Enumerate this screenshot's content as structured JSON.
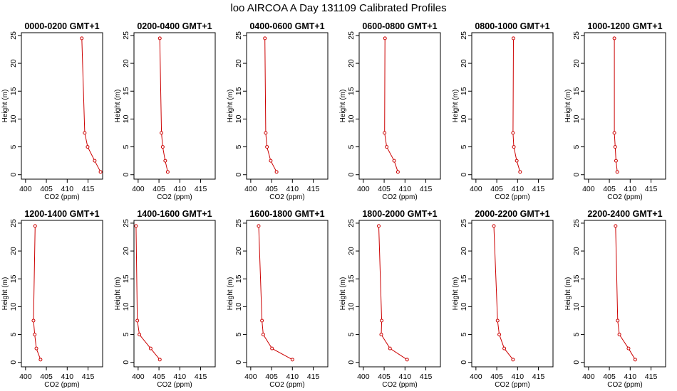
{
  "title": "loo AIRCOA A  Day 131109  Calibrated Profiles",
  "colors": {
    "profile_line": "#cc0000",
    "profile_point": "#cc0000"
  },
  "chart_data": {
    "type": "line",
    "xlabel": "CO2 (ppm)",
    "ylabel": "Height (m)",
    "xlim": [
      399,
      418.5
    ],
    "ylim": [
      -0.8,
      25.5
    ],
    "xticks": [
      400,
      405,
      410,
      415
    ],
    "yticks": [
      0,
      5,
      10,
      15,
      20,
      25
    ],
    "heights": [
      0.5,
      2.5,
      5,
      7.5,
      24.5
    ],
    "grid": false,
    "panels": [
      {
        "title": "0000-0200 GMT+1",
        "co2": [
          418.0,
          416.6,
          414.9,
          414.2,
          413.5
        ]
      },
      {
        "title": "0200-0400 GMT+1",
        "co2": [
          407.1,
          406.5,
          405.9,
          405.6,
          405.2
        ]
      },
      {
        "title": "0400-0600 GMT+1",
        "co2": [
          406.2,
          404.8,
          403.9,
          403.6,
          403.4
        ]
      },
      {
        "title": "0600-0800 GMT+1",
        "co2": [
          408.3,
          407.4,
          405.6,
          405.1,
          405.2
        ]
      },
      {
        "title": "0800-1000 GMT+1",
        "co2": [
          410.6,
          409.8,
          409.1,
          408.9,
          409.0
        ]
      },
      {
        "title": "1000-1200 GMT+1",
        "co2": [
          406.9,
          406.6,
          406.4,
          406.2,
          406.2
        ]
      },
      {
        "title": "1200-1400 GMT+1",
        "co2": [
          403.6,
          402.6,
          402.2,
          401.9,
          402.3
        ]
      },
      {
        "title": "1400-1600 GMT+1",
        "co2": [
          405.2,
          403.0,
          400.3,
          399.8,
          399.5
        ]
      },
      {
        "title": "1600-1800 GMT+1",
        "co2": [
          410.0,
          405.1,
          403.0,
          402.7,
          401.9
        ]
      },
      {
        "title": "1800-2000 GMT+1",
        "co2": [
          410.5,
          406.4,
          404.3,
          404.4,
          403.7
        ]
      },
      {
        "title": "2000-2200 GMT+1",
        "co2": [
          408.9,
          406.8,
          405.6,
          405.2,
          404.3
        ]
      },
      {
        "title": "2200-2400 GMT+1",
        "co2": [
          411.2,
          409.6,
          407.4,
          407.0,
          406.5
        ]
      }
    ]
  }
}
